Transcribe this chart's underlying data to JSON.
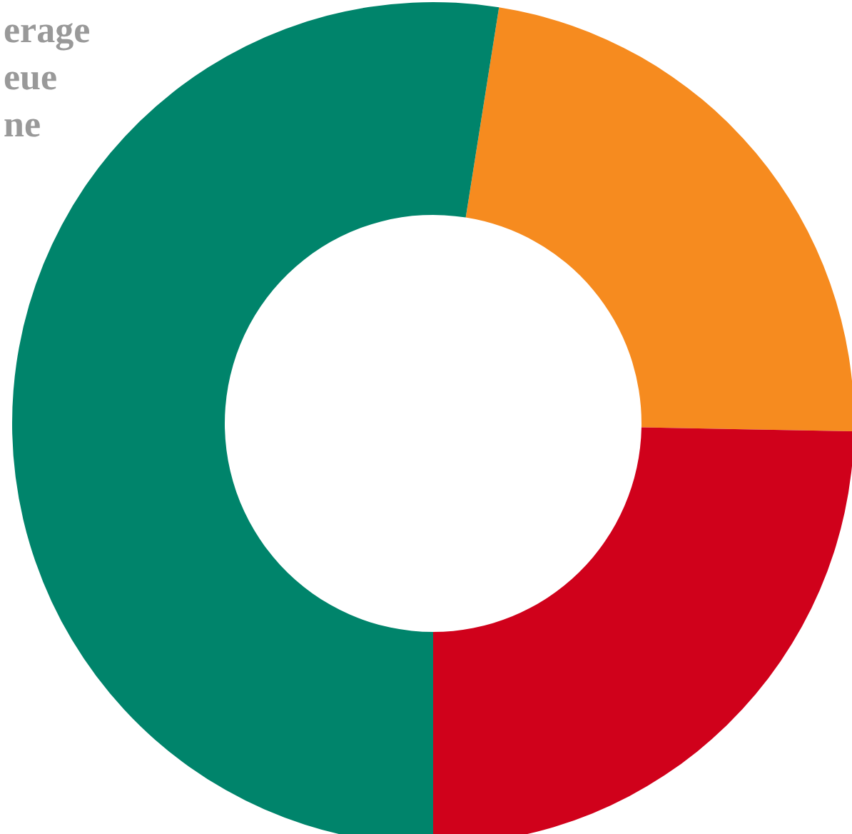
{
  "chart_data": {
    "type": "donut",
    "categories": [
      null,
      null,
      null
    ],
    "values": [
      22.8,
      24.7,
      52.5
    ],
    "colors": [
      "#f68b1f",
      "#d0011b",
      "#00846b"
    ],
    "annotations": [
      "erage",
      "eue",
      "ne"
    ]
  }
}
